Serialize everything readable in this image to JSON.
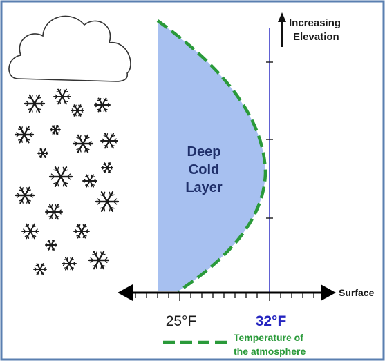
{
  "elevation_label": [
    "Increasing",
    "Elevation"
  ],
  "layer_label": [
    "Deep",
    "Cold",
    "Layer"
  ],
  "surface_label": "Surface",
  "ticks": {
    "left_temp": "25°F",
    "freezing_temp": "32°F"
  },
  "legend": {
    "line1": "Temperature of",
    "line2": "the atmosphere"
  },
  "colors": {
    "cold_layer_fill": "#a7c0f0",
    "temperature_line": "#2a9a3a",
    "freezing_line": "#3a3ac8",
    "freezing_label": "#2626c0",
    "frame_border": "#5a7fb0",
    "axis": "#000000"
  },
  "icons": [
    "cloud-icon",
    "snowflake-icon"
  ]
}
